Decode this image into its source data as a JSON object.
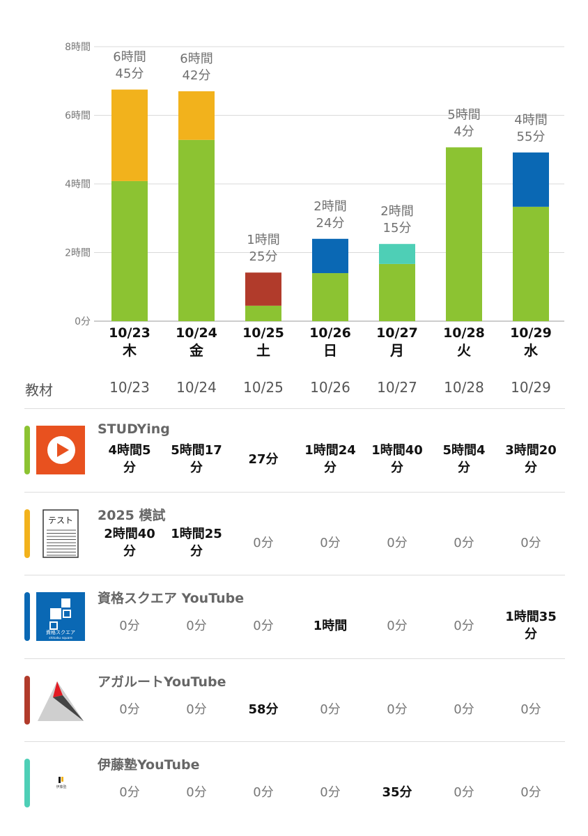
{
  "chart_data": {
    "type": "bar",
    "stacked": true,
    "categories": [
      "10/23",
      "10/24",
      "10/25",
      "10/26",
      "10/27",
      "10/28",
      "10/29"
    ],
    "day_labels": [
      "木",
      "金",
      "土",
      "日",
      "月",
      "火",
      "水"
    ],
    "ylim": [
      0,
      480
    ],
    "y_ticks": [
      {
        "value": 0,
        "label": "0分"
      },
      {
        "value": 120,
        "label": "2時間"
      },
      {
        "value": 240,
        "label": "4時間"
      },
      {
        "value": 360,
        "label": "6時間"
      },
      {
        "value": 480,
        "label": "8時間"
      }
    ],
    "grid": true,
    "total_labels": [
      [
        "6時間",
        "45分"
      ],
      [
        "6時間",
        "42分"
      ],
      [
        "1時間",
        "25分"
      ],
      [
        "2時間",
        "24分"
      ],
      [
        "2時間",
        "15分"
      ],
      [
        "5時間",
        "4分"
      ],
      [
        "4時間",
        "55分"
      ]
    ],
    "series": [
      {
        "name": "STUDYing",
        "color": "#8cc332",
        "values": [
          245,
          317,
          27,
          84,
          100,
          304,
          200
        ]
      },
      {
        "name": "2025 模試",
        "color": "#f2b21c",
        "values": [
          160,
          85,
          0,
          0,
          0,
          0,
          0
        ]
      },
      {
        "name": "資格スクエア YouTube",
        "color": "#0a68b4",
        "values": [
          0,
          0,
          0,
          60,
          0,
          0,
          95
        ]
      },
      {
        "name": "アガルートYouTube",
        "color": "#b13b2b",
        "values": [
          0,
          0,
          58,
          0,
          0,
          0,
          0
        ]
      },
      {
        "name": "伊藤塾YouTube",
        "color": "#4ecfb6",
        "values": [
          0,
          0,
          0,
          0,
          35,
          0,
          0
        ]
      }
    ]
  },
  "table": {
    "header_label": "教材",
    "dates": [
      "10/23",
      "10/24",
      "10/25",
      "10/26",
      "10/27",
      "10/28",
      "10/29"
    ],
    "rows": [
      {
        "name": "STUDYing",
        "icon": "play-icon",
        "color": "#8cc332",
        "cells": [
          [
            "4時間5",
            "分"
          ],
          [
            "5時間17",
            "分"
          ],
          [
            "27分"
          ],
          [
            "1時間24",
            "分"
          ],
          [
            "1時間40",
            "分"
          ],
          [
            "5時間4",
            "分"
          ],
          [
            "3時間20",
            "分"
          ]
        ],
        "active": [
          true,
          true,
          true,
          true,
          true,
          true,
          true
        ]
      },
      {
        "name": "2025 模試",
        "icon": "test-sheet-icon",
        "color": "#f2b21c",
        "logo_text": "テスト",
        "cells": [
          [
            "2時間40",
            "分"
          ],
          [
            "1時間25",
            "分"
          ],
          [
            "0分"
          ],
          [
            "0分"
          ],
          [
            "0分"
          ],
          [
            "0分"
          ],
          [
            "0分"
          ]
        ],
        "active": [
          true,
          true,
          false,
          false,
          false,
          false,
          false
        ]
      },
      {
        "name": "資格スクエア YouTube",
        "icon": "shikaku-square-logo-icon",
        "color": "#0a68b4",
        "logo_text": "資格スクエア",
        "logo_subtext": "shikaku square",
        "cells": [
          [
            "0分"
          ],
          [
            "0分"
          ],
          [
            "0分"
          ],
          [
            "1時間"
          ],
          [
            "0分"
          ],
          [
            "0分"
          ],
          [
            "1時間35",
            "分"
          ]
        ],
        "active": [
          false,
          false,
          false,
          true,
          false,
          false,
          true
        ]
      },
      {
        "name": "アガルートYouTube",
        "icon": "agaroot-logo-icon",
        "color": "#b13b2b",
        "cells": [
          [
            "0分"
          ],
          [
            "0分"
          ],
          [
            "58分"
          ],
          [
            "0分"
          ],
          [
            "0分"
          ],
          [
            "0分"
          ],
          [
            "0分"
          ]
        ],
        "active": [
          false,
          false,
          true,
          false,
          false,
          false,
          false
        ]
      },
      {
        "name": "伊藤塾YouTube",
        "icon": "itojuku-logo-icon",
        "color": "#4ecfb6",
        "logo_text": "伊藤塾",
        "cells": [
          [
            "0分"
          ],
          [
            "0分"
          ],
          [
            "0分"
          ],
          [
            "0分"
          ],
          [
            "35分"
          ],
          [
            "0分"
          ],
          [
            "0分"
          ]
        ],
        "active": [
          false,
          false,
          false,
          false,
          true,
          false,
          false
        ]
      }
    ]
  }
}
